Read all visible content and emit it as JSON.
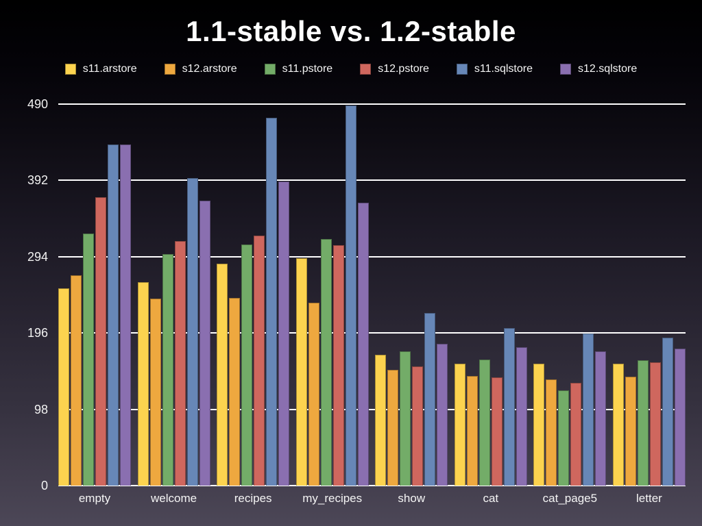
{
  "chart_data": {
    "type": "bar",
    "title": "1.1-stable vs. 1.2-stable",
    "categories": [
      "empty",
      "welcome",
      "recipes",
      "my_recipes",
      "show",
      "cat",
      "cat_page5",
      "letter"
    ],
    "series": [
      {
        "name": "s11.arstore",
        "color": "#FCD34F",
        "values": [
          253,
          261,
          285,
          292,
          168,
          157,
          157,
          157
        ]
      },
      {
        "name": "s12.arstore",
        "color": "#EEA83F",
        "values": [
          270,
          240,
          241,
          235,
          149,
          141,
          136,
          140
        ]
      },
      {
        "name": "s11.pstore",
        "color": "#73AC68",
        "values": [
          324,
          297,
          310,
          317,
          172,
          162,
          122,
          161
        ]
      },
      {
        "name": "s12.pstore",
        "color": "#CF675E",
        "values": [
          370,
          314,
          321,
          309,
          153,
          139,
          132,
          158
        ]
      },
      {
        "name": "s11.sqlstore",
        "color": "#6787B7",
        "values": [
          438,
          395,
          472,
          488,
          222,
          202,
          195,
          190
        ]
      },
      {
        "name": "s12.sqlstore",
        "color": "#8A6FB0",
        "values": [
          438,
          366,
          391,
          363,
          182,
          178,
          172,
          176
        ]
      }
    ],
    "y_ticks": [
      0,
      98,
      196,
      294,
      392,
      490
    ],
    "ylim": [
      0,
      490
    ],
    "xlabel": "",
    "ylabel": "",
    "legend_position": "top",
    "grid": "horizontal",
    "gridline_color": "#FFFFFF",
    "background": {
      "top": "#000000",
      "bottom": "#4C4757"
    },
    "text_color": "#FFFFFF"
  }
}
